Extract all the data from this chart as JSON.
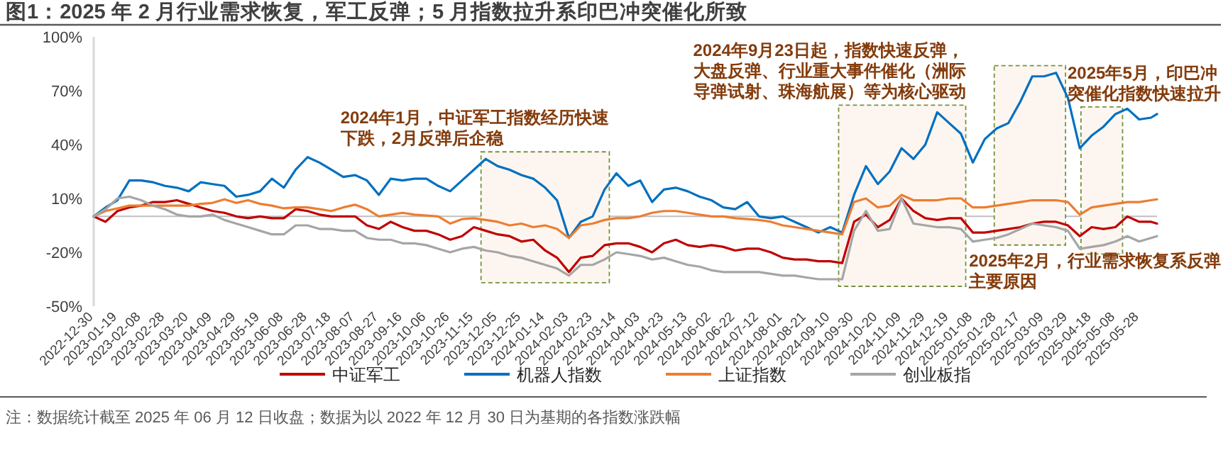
{
  "chart_data": {
    "type": "line",
    "title": "图1：2025 年 2 月行业需求恢复，军工反弹；5 月指数拉升系印巴冲突催化所致",
    "annotations": [
      "注：数据统计截至 2025 年 06 月 12 日收盘；数据为以 2022 年 12 月 30 日为基期的各指数涨跌幅"
    ],
    "xlim": [
      "2022-12-30",
      "2025-06-12"
    ],
    "ylim": [
      -50,
      100
    ],
    "yticks": [
      {
        "value": -50,
        "label": "-50%"
      },
      {
        "value": -20,
        "label": "-20%"
      },
      {
        "value": 10,
        "label": "10%"
      },
      {
        "value": 40,
        "label": "40%"
      },
      {
        "value": 70,
        "label": "70%"
      },
      {
        "value": 100,
        "label": "100%"
      }
    ],
    "xticks": [
      "2022-12-30",
      "2023-01-19",
      "2023-02-08",
      "2023-02-28",
      "2023-03-20",
      "2023-04-09",
      "2023-04-29",
      "2023-05-19",
      "2023-06-08",
      "2023-06-28",
      "2023-07-18",
      "2023-08-07",
      "2023-08-27",
      "2023-09-16",
      "2023-10-06",
      "2023-10-26",
      "2023-11-15",
      "2023-12-05",
      "2023-12-25",
      "2024-01-14",
      "2024-02-03",
      "2024-02-23",
      "2024-03-14",
      "2024-04-03",
      "2024-04-23",
      "2024-05-13",
      "2024-06-02",
      "2024-06-22",
      "2024-07-12",
      "2024-08-01",
      "2024-08-21",
      "2024-09-10",
      "2024-09-30",
      "2024-10-20",
      "2024-11-09",
      "2024-11-29",
      "2024-12-19",
      "2025-01-08",
      "2025-01-28",
      "2025-02-17",
      "2025-03-09",
      "2025-03-29",
      "2025-04-18",
      "2025-05-08",
      "2025-05-28"
    ],
    "x": [
      "2022-12-30",
      "2023-01-09",
      "2023-01-19",
      "2023-01-29",
      "2023-02-08",
      "2023-02-18",
      "2023-02-28",
      "2023-03-10",
      "2023-03-20",
      "2023-03-30",
      "2023-04-09",
      "2023-04-19",
      "2023-04-29",
      "2023-05-09",
      "2023-05-19",
      "2023-05-29",
      "2023-06-08",
      "2023-06-18",
      "2023-06-28",
      "2023-07-08",
      "2023-07-18",
      "2023-07-28",
      "2023-08-07",
      "2023-08-17",
      "2023-08-27",
      "2023-09-06",
      "2023-09-16",
      "2023-09-26",
      "2023-10-06",
      "2023-10-16",
      "2023-10-26",
      "2023-11-05",
      "2023-11-15",
      "2023-11-25",
      "2023-12-05",
      "2023-12-15",
      "2023-12-25",
      "2024-01-04",
      "2024-01-14",
      "2024-01-24",
      "2024-02-03",
      "2024-02-13",
      "2024-02-23",
      "2024-03-04",
      "2024-03-14",
      "2024-03-24",
      "2024-04-03",
      "2024-04-13",
      "2024-04-23",
      "2024-05-03",
      "2024-05-13",
      "2024-05-23",
      "2024-06-02",
      "2024-06-12",
      "2024-06-22",
      "2024-07-02",
      "2024-07-12",
      "2024-07-22",
      "2024-08-01",
      "2024-08-11",
      "2024-08-21",
      "2024-08-31",
      "2024-09-10",
      "2024-09-20",
      "2024-09-30",
      "2024-10-10",
      "2024-10-20",
      "2024-10-30",
      "2024-11-09",
      "2024-11-19",
      "2024-11-29",
      "2024-12-09",
      "2024-12-19",
      "2024-12-29",
      "2025-01-08",
      "2025-01-18",
      "2025-01-28",
      "2025-02-07",
      "2025-02-17",
      "2025-02-27",
      "2025-03-09",
      "2025-03-19",
      "2025-03-29",
      "2025-04-08",
      "2025-04-18",
      "2025-04-28",
      "2025-05-08",
      "2025-05-18",
      "2025-05-28",
      "2025-06-07",
      "2025-06-12"
    ],
    "series": [
      {
        "name": "中证军工",
        "color": "#c00000",
        "values": [
          0,
          -3,
          3,
          5,
          6,
          8,
          8,
          9,
          7,
          5,
          3,
          2,
          0,
          -1,
          0,
          -1,
          -1,
          4,
          3,
          1,
          0,
          0,
          0,
          -5,
          -7,
          -3,
          -6,
          -8,
          -8,
          -10,
          -13,
          -11,
          -6,
          -8,
          -10,
          -11,
          -14,
          -13,
          -19,
          -23,
          -31,
          -23,
          -22,
          -16,
          -15,
          -15,
          -17,
          -20,
          -15,
          -13,
          -16,
          -17,
          -16,
          -17,
          -19,
          -18,
          -18,
          -20,
          -23,
          -24,
          -24,
          -25,
          -25,
          -26,
          -3,
          1,
          -6,
          -2,
          10,
          3,
          -1,
          -2,
          -1,
          -1,
          -9,
          -9,
          -8,
          -7,
          -6,
          -4,
          -3,
          -3,
          -5,
          -11,
          -6,
          -7,
          -6,
          0,
          -3,
          -3,
          -4
        ]
      },
      {
        "name": "机器人指数",
        "color": "#0070c0",
        "values": [
          0,
          5,
          9,
          20,
          20,
          19,
          17,
          16,
          14,
          19,
          18,
          17,
          11,
          12,
          14,
          21,
          16,
          26,
          33,
          30,
          26,
          22,
          23,
          20,
          12,
          21,
          20,
          21,
          21,
          17,
          14,
          20,
          26,
          32,
          28,
          26,
          23,
          21,
          16,
          9,
          -12,
          -3,
          0,
          15,
          24,
          17,
          20,
          8,
          15,
          16,
          14,
          11,
          9,
          5,
          4,
          8,
          0,
          -1,
          0,
          -3,
          -6,
          -9,
          -6,
          -9,
          12,
          28,
          18,
          25,
          38,
          32,
          40,
          58,
          52,
          46,
          30,
          43,
          49,
          52,
          64,
          78,
          78,
          80,
          66,
          38,
          45,
          50,
          57,
          60,
          54,
          55,
          57
        ]
      },
      {
        "name": "上证指数",
        "color": "#ed7d31",
        "values": [
          0,
          3,
          4.5,
          6,
          6,
          6,
          6,
          6,
          6,
          7,
          7.5,
          9.5,
          7.5,
          9,
          7,
          6,
          4.5,
          5,
          5,
          4,
          3,
          5,
          6.5,
          4,
          0,
          1,
          2,
          1,
          0.5,
          0,
          -4,
          -1.5,
          -1,
          -2,
          -3,
          -5,
          -4,
          -6,
          -5,
          -7,
          -12,
          -5,
          -4,
          -2,
          -1,
          -1,
          0,
          2,
          3,
          3,
          2,
          1,
          0,
          0,
          -1,
          -1.5,
          -2,
          -3,
          -5,
          -6,
          -7,
          -8,
          -9,
          -10,
          8,
          10,
          5,
          6,
          12,
          9,
          9,
          9,
          10,
          10,
          5,
          5,
          6,
          7,
          8,
          9,
          9,
          9,
          8,
          1,
          5,
          6,
          7,
          8,
          8,
          9,
          9.5
        ]
      },
      {
        "name": "创业板指",
        "color": "#a5a5a5",
        "values": [
          0,
          4,
          10,
          11,
          9,
          6,
          4,
          1,
          0,
          0,
          1,
          -2,
          -4,
          -6,
          -8,
          -10,
          -10,
          -5,
          -5,
          -7,
          -7,
          -8,
          -8,
          -12,
          -13,
          -13,
          -15,
          -15,
          -16,
          -18,
          -20,
          -18,
          -17,
          -19,
          -20,
          -22,
          -23,
          -25,
          -27,
          -29,
          -33,
          -27,
          -27,
          -24,
          -20,
          -21,
          -22,
          -24,
          -23,
          -25,
          -27,
          -28,
          -30,
          -31,
          -31,
          -31,
          -31,
          -32,
          -33,
          -33,
          -34,
          -35,
          -35,
          -35,
          -8,
          3,
          -8,
          -7,
          10,
          -4,
          -5,
          -6,
          -6,
          -7,
          -14,
          -13,
          -12,
          -10,
          -7,
          -4,
          -5,
          -6,
          -8,
          -18,
          -17,
          -16,
          -14,
          -11,
          -14,
          -12,
          -11
        ]
      }
    ],
    "bands": [
      {
        "axis": "x",
        "from": "2023-11-21",
        "to": "2024-03-08",
        "label": "2024年1月，中证军工指数经历快速下跌，2月反弹后企稳",
        "color": "#fdf6f0"
      },
      {
        "axis": "x",
        "from": "2024-09-17",
        "to": "2025-01-02",
        "label": "2024年9月23日起，指数快速反弹，大盘反弹、行业重大事件催化（洲际导弹试射、珠海航展）等为核心驱动",
        "color": "#fdf6f0"
      },
      {
        "axis": "x",
        "from": "2025-01-26",
        "to": "2025-03-27",
        "label": "2025年2月，行业需求恢复系反弹主要原因",
        "color": "#fdf6f0"
      },
      {
        "axis": "x",
        "from": "2025-04-09",
        "to": "2025-05-14",
        "label": "2025年5月，印巴冲突催化指数快速拉升",
        "color": "#fdf6f0"
      }
    ],
    "legend": "bottom"
  }
}
